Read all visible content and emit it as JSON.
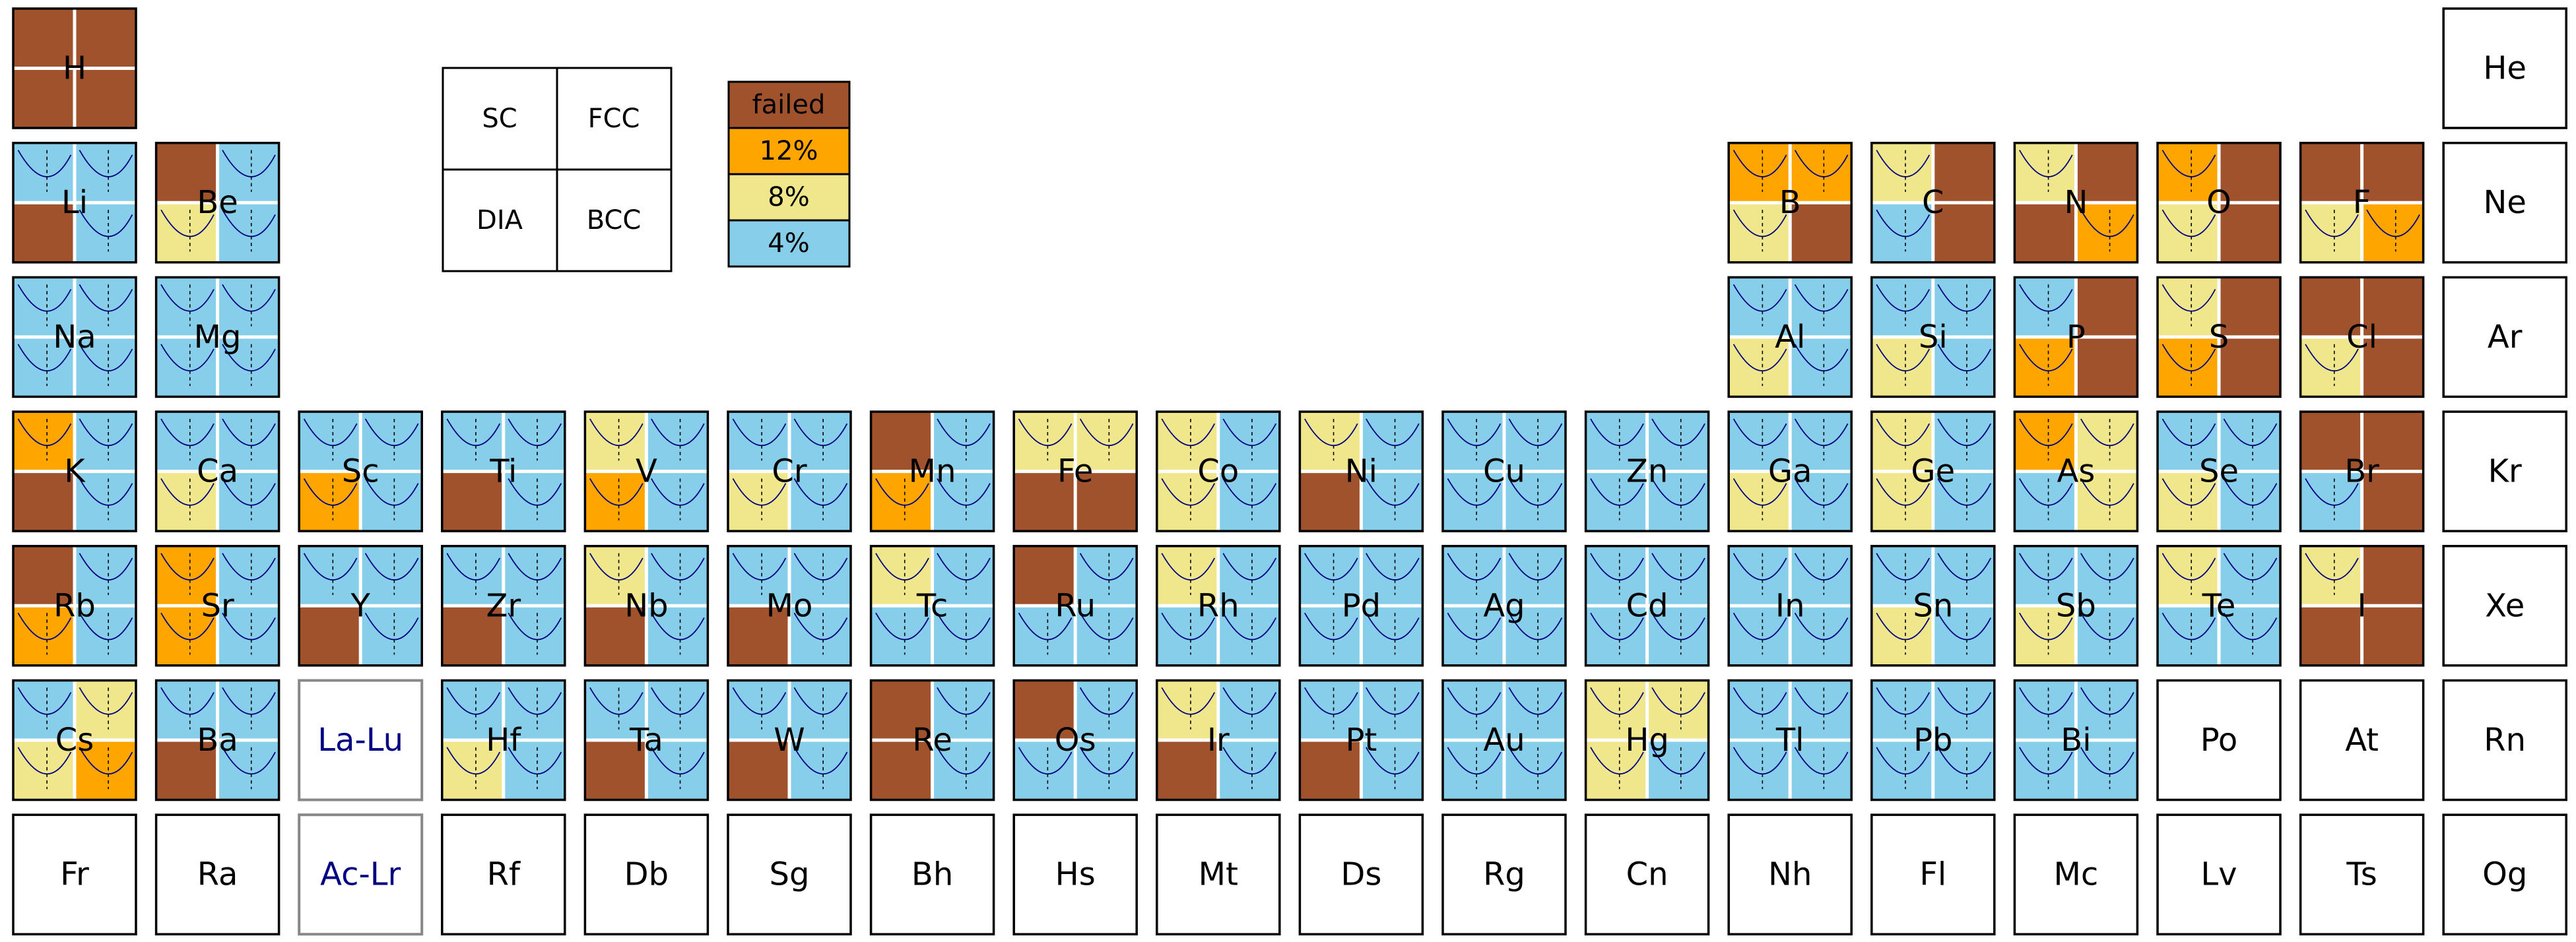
{
  "chart_data": {
    "type": "heatmap",
    "title": "",
    "key": {
      "quadrants": [
        "SC",
        "FCC",
        "DIA",
        "BCC"
      ]
    },
    "legend": [
      {
        "label": "failed",
        "color": "#A0522D"
      },
      {
        "label": "12%",
        "color": "#FFA500"
      },
      {
        "label": "8%",
        "color": "#F0E68C"
      },
      {
        "label": "4%",
        "color": "#87CEEB"
      }
    ],
    "colors": {
      "failed": "#A0522D",
      "12%": "#FFA500",
      "8%": "#F0E68C",
      "4%": "#87CEEB",
      "cell_border": "#000000",
      "series_border": "#888888",
      "series_text": "#000080",
      "curve": "#000080"
    },
    "quadrant_order": [
      "SC",
      "FCC",
      "DIA",
      "BCC"
    ],
    "elements": [
      {
        "symbol": "H",
        "row": 1,
        "col": 1,
        "values": [
          "failed",
          "failed",
          "failed",
          "failed"
        ]
      },
      {
        "symbol": "He",
        "row": 1,
        "col": 18,
        "values": null
      },
      {
        "symbol": "Li",
        "row": 2,
        "col": 1,
        "values": [
          "4%",
          "4%",
          "failed",
          "4%"
        ]
      },
      {
        "symbol": "Be",
        "row": 2,
        "col": 2,
        "values": [
          "failed",
          "4%",
          "8%",
          "4%"
        ]
      },
      {
        "symbol": "B",
        "row": 2,
        "col": 13,
        "values": [
          "12%",
          "12%",
          "8%",
          "failed"
        ]
      },
      {
        "symbol": "C",
        "row": 2,
        "col": 14,
        "values": [
          "8%",
          "failed",
          "4%",
          "failed"
        ]
      },
      {
        "symbol": "N",
        "row": 2,
        "col": 15,
        "values": [
          "8%",
          "failed",
          "failed",
          "12%"
        ]
      },
      {
        "symbol": "O",
        "row": 2,
        "col": 16,
        "values": [
          "12%",
          "failed",
          "8%",
          "failed"
        ]
      },
      {
        "symbol": "F",
        "row": 2,
        "col": 17,
        "values": [
          "failed",
          "failed",
          "8%",
          "12%"
        ]
      },
      {
        "symbol": "Ne",
        "row": 2,
        "col": 18,
        "values": null
      },
      {
        "symbol": "Na",
        "row": 3,
        "col": 1,
        "values": [
          "4%",
          "4%",
          "4%",
          "4%"
        ]
      },
      {
        "symbol": "Mg",
        "row": 3,
        "col": 2,
        "values": [
          "4%",
          "4%",
          "4%",
          "4%"
        ]
      },
      {
        "symbol": "Al",
        "row": 3,
        "col": 13,
        "values": [
          "4%",
          "4%",
          "8%",
          "4%"
        ]
      },
      {
        "symbol": "Si",
        "row": 3,
        "col": 14,
        "values": [
          "4%",
          "4%",
          "8%",
          "4%"
        ]
      },
      {
        "symbol": "P",
        "row": 3,
        "col": 15,
        "values": [
          "4%",
          "failed",
          "12%",
          "failed"
        ]
      },
      {
        "symbol": "S",
        "row": 3,
        "col": 16,
        "values": [
          "8%",
          "failed",
          "12%",
          "failed"
        ]
      },
      {
        "symbol": "Cl",
        "row": 3,
        "col": 17,
        "values": [
          "failed",
          "failed",
          "8%",
          "failed"
        ]
      },
      {
        "symbol": "Ar",
        "row": 3,
        "col": 18,
        "values": null
      },
      {
        "symbol": "K",
        "row": 4,
        "col": 1,
        "values": [
          "12%",
          "4%",
          "failed",
          "4%"
        ]
      },
      {
        "symbol": "Ca",
        "row": 4,
        "col": 2,
        "values": [
          "4%",
          "4%",
          "8%",
          "4%"
        ]
      },
      {
        "symbol": "Sc",
        "row": 4,
        "col": 3,
        "values": [
          "4%",
          "4%",
          "12%",
          "4%"
        ]
      },
      {
        "symbol": "Ti",
        "row": 4,
        "col": 4,
        "values": [
          "4%",
          "4%",
          "failed",
          "4%"
        ]
      },
      {
        "symbol": "V",
        "row": 4,
        "col": 5,
        "values": [
          "8%",
          "4%",
          "12%",
          "4%"
        ]
      },
      {
        "symbol": "Cr",
        "row": 4,
        "col": 6,
        "values": [
          "4%",
          "4%",
          "8%",
          "4%"
        ]
      },
      {
        "symbol": "Mn",
        "row": 4,
        "col": 7,
        "values": [
          "failed",
          "4%",
          "12%",
          "4%"
        ]
      },
      {
        "symbol": "Fe",
        "row": 4,
        "col": 8,
        "values": [
          "8%",
          "8%",
          "failed",
          "failed"
        ]
      },
      {
        "symbol": "Co",
        "row": 4,
        "col": 9,
        "values": [
          "8%",
          "4%",
          "8%",
          "4%"
        ]
      },
      {
        "symbol": "Ni",
        "row": 4,
        "col": 10,
        "values": [
          "8%",
          "4%",
          "failed",
          "4%"
        ]
      },
      {
        "symbol": "Cu",
        "row": 4,
        "col": 11,
        "values": [
          "4%",
          "4%",
          "4%",
          "4%"
        ]
      },
      {
        "symbol": "Zn",
        "row": 4,
        "col": 12,
        "values": [
          "4%",
          "4%",
          "4%",
          "4%"
        ]
      },
      {
        "symbol": "Ga",
        "row": 4,
        "col": 13,
        "values": [
          "4%",
          "4%",
          "8%",
          "4%"
        ]
      },
      {
        "symbol": "Ge",
        "row": 4,
        "col": 14,
        "values": [
          "8%",
          "4%",
          "8%",
          "4%"
        ]
      },
      {
        "symbol": "As",
        "row": 4,
        "col": 15,
        "values": [
          "12%",
          "8%",
          "4%",
          "8%"
        ]
      },
      {
        "symbol": "Se",
        "row": 4,
        "col": 16,
        "values": [
          "4%",
          "4%",
          "8%",
          "4%"
        ]
      },
      {
        "symbol": "Br",
        "row": 4,
        "col": 17,
        "values": [
          "failed",
          "failed",
          "4%",
          "failed"
        ]
      },
      {
        "symbol": "Kr",
        "row": 4,
        "col": 18,
        "values": null
      },
      {
        "symbol": "Rb",
        "row": 5,
        "col": 1,
        "values": [
          "failed",
          "4%",
          "12%",
          "4%"
        ]
      },
      {
        "symbol": "Sr",
        "row": 5,
        "col": 2,
        "values": [
          "12%",
          "4%",
          "12%",
          "4%"
        ]
      },
      {
        "symbol": "Y",
        "row": 5,
        "col": 3,
        "values": [
          "4%",
          "4%",
          "failed",
          "4%"
        ]
      },
      {
        "symbol": "Zr",
        "row": 5,
        "col": 4,
        "values": [
          "4%",
          "4%",
          "failed",
          "4%"
        ]
      },
      {
        "symbol": "Nb",
        "row": 5,
        "col": 5,
        "values": [
          "8%",
          "4%",
          "failed",
          "4%"
        ]
      },
      {
        "symbol": "Mo",
        "row": 5,
        "col": 6,
        "values": [
          "4%",
          "4%",
          "failed",
          "4%"
        ]
      },
      {
        "symbol": "Tc",
        "row": 5,
        "col": 7,
        "values": [
          "8%",
          "4%",
          "4%",
          "4%"
        ]
      },
      {
        "symbol": "Ru",
        "row": 5,
        "col": 8,
        "values": [
          "failed",
          "4%",
          "4%",
          "4%"
        ]
      },
      {
        "symbol": "Rh",
        "row": 5,
        "col": 9,
        "values": [
          "8%",
          "4%",
          "4%",
          "4%"
        ]
      },
      {
        "symbol": "Pd",
        "row": 5,
        "col": 10,
        "values": [
          "4%",
          "4%",
          "4%",
          "4%"
        ]
      },
      {
        "symbol": "Ag",
        "row": 5,
        "col": 11,
        "values": [
          "4%",
          "4%",
          "4%",
          "4%"
        ]
      },
      {
        "symbol": "Cd",
        "row": 5,
        "col": 12,
        "values": [
          "4%",
          "4%",
          "4%",
          "4%"
        ]
      },
      {
        "symbol": "In",
        "row": 5,
        "col": 13,
        "values": [
          "4%",
          "4%",
          "4%",
          "4%"
        ]
      },
      {
        "symbol": "Sn",
        "row": 5,
        "col": 14,
        "values": [
          "4%",
          "4%",
          "8%",
          "4%"
        ]
      },
      {
        "symbol": "Sb",
        "row": 5,
        "col": 15,
        "values": [
          "4%",
          "4%",
          "8%",
          "4%"
        ]
      },
      {
        "symbol": "Te",
        "row": 5,
        "col": 16,
        "values": [
          "8%",
          "4%",
          "4%",
          "4%"
        ]
      },
      {
        "symbol": "I",
        "row": 5,
        "col": 17,
        "values": [
          "8%",
          "failed",
          "failed",
          "failed"
        ]
      },
      {
        "symbol": "Xe",
        "row": 5,
        "col": 18,
        "values": null
      },
      {
        "symbol": "Cs",
        "row": 6,
        "col": 1,
        "values": [
          "4%",
          "8%",
          "8%",
          "12%"
        ]
      },
      {
        "symbol": "Ba",
        "row": 6,
        "col": 2,
        "values": [
          "4%",
          "4%",
          "failed",
          "4%"
        ]
      },
      {
        "symbol": "La-Lu",
        "row": 6,
        "col": 3,
        "values": null,
        "series": true
      },
      {
        "symbol": "Hf",
        "row": 6,
        "col": 4,
        "values": [
          "4%",
          "4%",
          "8%",
          "4%"
        ]
      },
      {
        "symbol": "Ta",
        "row": 6,
        "col": 5,
        "values": [
          "4%",
          "4%",
          "failed",
          "4%"
        ]
      },
      {
        "symbol": "W",
        "row": 6,
        "col": 6,
        "values": [
          "4%",
          "4%",
          "failed",
          "4%"
        ]
      },
      {
        "symbol": "Re",
        "row": 6,
        "col": 7,
        "values": [
          "failed",
          "4%",
          "failed",
          "4%"
        ]
      },
      {
        "symbol": "Os",
        "row": 6,
        "col": 8,
        "values": [
          "failed",
          "4%",
          "4%",
          "4%"
        ]
      },
      {
        "symbol": "Ir",
        "row": 6,
        "col": 9,
        "values": [
          "8%",
          "4%",
          "failed",
          "4%"
        ]
      },
      {
        "symbol": "Pt",
        "row": 6,
        "col": 10,
        "values": [
          "4%",
          "4%",
          "failed",
          "4%"
        ]
      },
      {
        "symbol": "Au",
        "row": 6,
        "col": 11,
        "values": [
          "4%",
          "4%",
          "4%",
          "4%"
        ]
      },
      {
        "symbol": "Hg",
        "row": 6,
        "col": 12,
        "values": [
          "8%",
          "8%",
          "8%",
          "4%"
        ]
      },
      {
        "symbol": "Tl",
        "row": 6,
        "col": 13,
        "values": [
          "4%",
          "4%",
          "4%",
          "4%"
        ]
      },
      {
        "symbol": "Pb",
        "row": 6,
        "col": 14,
        "values": [
          "4%",
          "4%",
          "4%",
          "4%"
        ]
      },
      {
        "symbol": "Bi",
        "row": 6,
        "col": 15,
        "values": [
          "4%",
          "4%",
          "4%",
          "4%"
        ]
      },
      {
        "symbol": "Po",
        "row": 6,
        "col": 16,
        "values": null
      },
      {
        "symbol": "At",
        "row": 6,
        "col": 17,
        "values": null
      },
      {
        "symbol": "Rn",
        "row": 6,
        "col": 18,
        "values": null
      },
      {
        "symbol": "Fr",
        "row": 7,
        "col": 1,
        "values": null
      },
      {
        "symbol": "Ra",
        "row": 7,
        "col": 2,
        "values": null
      },
      {
        "symbol": "Ac-Lr",
        "row": 7,
        "col": 3,
        "values": null,
        "series": true
      },
      {
        "symbol": "Rf",
        "row": 7,
        "col": 4,
        "values": null
      },
      {
        "symbol": "Db",
        "row": 7,
        "col": 5,
        "values": null
      },
      {
        "symbol": "Sg",
        "row": 7,
        "col": 6,
        "values": null
      },
      {
        "symbol": "Bh",
        "row": 7,
        "col": 7,
        "values": null
      },
      {
        "symbol": "Hs",
        "row": 7,
        "col": 8,
        "values": null
      },
      {
        "symbol": "Mt",
        "row": 7,
        "col": 9,
        "values": null
      },
      {
        "symbol": "Ds",
        "row": 7,
        "col": 10,
        "values": null
      },
      {
        "symbol": "Rg",
        "row": 7,
        "col": 11,
        "values": null
      },
      {
        "symbol": "Cn",
        "row": 7,
        "col": 12,
        "values": null
      },
      {
        "symbol": "Nh",
        "row": 7,
        "col": 13,
        "values": null
      },
      {
        "symbol": "Fl",
        "row": 7,
        "col": 14,
        "values": null
      },
      {
        "symbol": "Mc",
        "row": 7,
        "col": 15,
        "values": null
      },
      {
        "symbol": "Lv",
        "row": 7,
        "col": 16,
        "values": null
      },
      {
        "symbol": "Ts",
        "row": 7,
        "col": 17,
        "values": null
      },
      {
        "symbol": "Og",
        "row": 7,
        "col": 18,
        "values": null
      }
    ]
  }
}
